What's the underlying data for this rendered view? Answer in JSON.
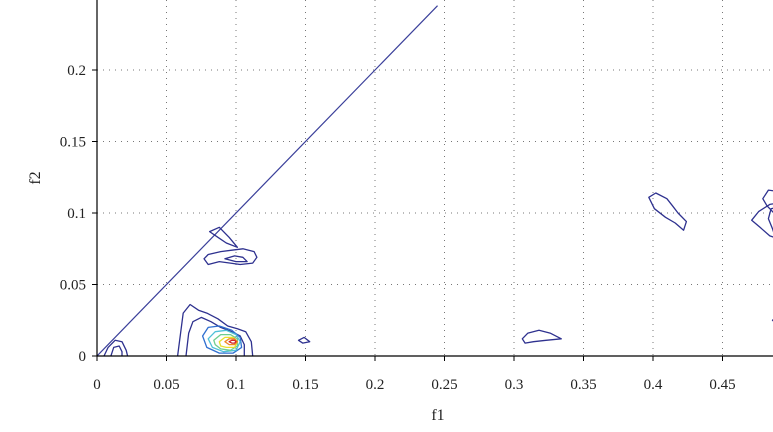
{
  "chart_data": {
    "type": "contour",
    "title": "",
    "xlabel": "f1",
    "ylabel": "f2",
    "xlim": [
      0,
      0.49
    ],
    "ylim": [
      0,
      0.24
    ],
    "x_ticks": [
      0,
      0.05,
      0.1,
      0.15,
      0.2,
      0.25,
      0.3,
      0.35,
      0.4,
      0.45
    ],
    "x_tick_labels": [
      "0",
      "0.05",
      "0.1",
      "0.15",
      "0.2",
      "0.25",
      "0.3",
      "0.35",
      "0.4",
      "0.45"
    ],
    "y_ticks": [
      0,
      0.05,
      0.1,
      0.15,
      0.2
    ],
    "y_tick_labels": [
      "0",
      "0.05",
      "0.1",
      "0.15",
      "0.2"
    ],
    "grid": true,
    "reference_line": {
      "from": [
        0,
        0
      ],
      "to": [
        0.245,
        0.245
      ],
      "color": "#3a3f9a"
    },
    "colors": {
      "dark_blue": "#2e318f",
      "blue": "#2f6fd0",
      "cyan": "#4fc0d8",
      "green": "#6fce8e",
      "yellow": "#e7e02f",
      "orange": "#f08a24",
      "red": "#d2232a"
    },
    "contours": [
      {
        "color": "#2e318f",
        "closed": false,
        "points": [
          [
            0.005,
            0
          ],
          [
            0.008,
            0.006
          ],
          [
            0.013,
            0.011
          ],
          [
            0.018,
            0.01
          ],
          [
            0.021,
            0.004
          ],
          [
            0.022,
            0
          ]
        ]
      },
      {
        "color": "#2e318f",
        "closed": false,
        "points": [
          [
            0.01,
            0
          ],
          [
            0.012,
            0.006
          ],
          [
            0.016,
            0.007
          ],
          [
            0.018,
            0.003
          ],
          [
            0.018,
            0
          ]
        ]
      },
      {
        "color": "#2e318f",
        "closed": false,
        "points": [
          [
            0.058,
            0
          ],
          [
            0.06,
            0.015
          ],
          [
            0.062,
            0.03
          ],
          [
            0.067,
            0.036
          ],
          [
            0.073,
            0.032
          ],
          [
            0.079,
            0.03
          ],
          [
            0.087,
            0.026
          ],
          [
            0.094,
            0.021
          ],
          [
            0.101,
            0.019
          ],
          [
            0.107,
            0.017
          ],
          [
            0.111,
            0.01
          ],
          [
            0.112,
            0
          ]
        ]
      },
      {
        "color": "#2e318f",
        "closed": false,
        "points": [
          [
            0.064,
            0
          ],
          [
            0.066,
            0.016
          ],
          [
            0.069,
            0.024
          ],
          [
            0.075,
            0.027
          ],
          [
            0.082,
            0.024
          ],
          [
            0.089,
            0.02
          ],
          [
            0.097,
            0.017
          ],
          [
            0.103,
            0.014
          ],
          [
            0.106,
            0.008
          ],
          [
            0.106,
            0
          ]
        ]
      },
      {
        "color": "#2f6fd0",
        "closed": true,
        "points": [
          [
            0.076,
            0.014
          ],
          [
            0.08,
            0.02
          ],
          [
            0.088,
            0.021
          ],
          [
            0.097,
            0.018
          ],
          [
            0.103,
            0.013
          ],
          [
            0.104,
            0.006
          ],
          [
            0.098,
            0.002
          ],
          [
            0.088,
            0.002
          ],
          [
            0.079,
            0.006
          ]
        ]
      },
      {
        "color": "#4fc0d8",
        "closed": true,
        "points": [
          [
            0.08,
            0.012
          ],
          [
            0.085,
            0.017
          ],
          [
            0.093,
            0.018
          ],
          [
            0.1,
            0.015
          ],
          [
            0.103,
            0.01
          ],
          [
            0.1,
            0.004
          ],
          [
            0.091,
            0.003
          ],
          [
            0.083,
            0.006
          ]
        ]
      },
      {
        "color": "#6fce8e",
        "closed": true,
        "points": [
          [
            0.084,
            0.011
          ],
          [
            0.089,
            0.015
          ],
          [
            0.096,
            0.015
          ],
          [
            0.101,
            0.012
          ],
          [
            0.101,
            0.007
          ],
          [
            0.096,
            0.004
          ],
          [
            0.089,
            0.005
          ],
          [
            0.085,
            0.008
          ]
        ]
      },
      {
        "color": "#e7e02f",
        "closed": true,
        "points": [
          [
            0.088,
            0.01
          ],
          [
            0.092,
            0.013
          ],
          [
            0.098,
            0.013
          ],
          [
            0.101,
            0.01
          ],
          [
            0.099,
            0.006
          ],
          [
            0.093,
            0.006
          ],
          [
            0.089,
            0.007
          ]
        ]
      },
      {
        "color": "#f08a24",
        "closed": true,
        "points": [
          [
            0.092,
            0.01
          ],
          [
            0.095,
            0.012
          ],
          [
            0.099,
            0.012
          ],
          [
            0.101,
            0.01
          ],
          [
            0.099,
            0.008
          ],
          [
            0.095,
            0.008
          ]
        ]
      },
      {
        "color": "#d2232a",
        "closed": true,
        "points": [
          [
            0.095,
            0.01
          ],
          [
            0.097,
            0.011
          ],
          [
            0.099,
            0.011
          ],
          [
            0.1,
            0.01
          ],
          [
            0.099,
            0.009
          ],
          [
            0.097,
            0.009
          ]
        ]
      },
      {
        "color": "#2e318f",
        "closed": true,
        "points": [
          [
            0.081,
            0.087
          ],
          [
            0.088,
            0.09
          ],
          [
            0.095,
            0.083
          ],
          [
            0.101,
            0.076
          ],
          [
            0.093,
            0.079
          ],
          [
            0.087,
            0.083
          ]
        ]
      },
      {
        "color": "#2e318f",
        "closed": true,
        "points": [
          [
            0.077,
            0.068
          ],
          [
            0.08,
            0.071
          ],
          [
            0.089,
            0.073
          ],
          [
            0.097,
            0.074
          ],
          [
            0.105,
            0.075
          ],
          [
            0.113,
            0.073
          ],
          [
            0.115,
            0.069
          ],
          [
            0.112,
            0.065
          ],
          [
            0.103,
            0.064
          ],
          [
            0.096,
            0.065
          ],
          [
            0.088,
            0.066
          ],
          [
            0.08,
            0.064
          ]
        ]
      },
      {
        "color": "#2e318f",
        "closed": true,
        "points": [
          [
            0.092,
            0.068
          ],
          [
            0.099,
            0.07
          ],
          [
            0.105,
            0.069
          ],
          [
            0.108,
            0.066
          ],
          [
            0.1,
            0.066
          ]
        ]
      },
      {
        "color": "#2e318f",
        "closed": true,
        "points": [
          [
            0.145,
            0.011
          ],
          [
            0.149,
            0.013
          ],
          [
            0.153,
            0.01
          ],
          [
            0.148,
            0.009
          ]
        ]
      },
      {
        "color": "#2e318f",
        "closed": true,
        "points": [
          [
            0.306,
            0.012
          ],
          [
            0.31,
            0.016
          ],
          [
            0.318,
            0.018
          ],
          [
            0.326,
            0.016
          ],
          [
            0.334,
            0.012
          ],
          [
            0.323,
            0.011
          ],
          [
            0.314,
            0.01
          ],
          [
            0.308,
            0.009
          ]
        ]
      },
      {
        "color": "#2e318f",
        "closed": true,
        "points": [
          [
            0.397,
            0.111
          ],
          [
            0.402,
            0.114
          ],
          [
            0.41,
            0.11
          ],
          [
            0.414,
            0.105
          ],
          [
            0.418,
            0.1
          ],
          [
            0.424,
            0.094
          ],
          [
            0.422,
            0.088
          ],
          [
            0.416,
            0.093
          ],
          [
            0.409,
            0.097
          ],
          [
            0.401,
            0.103
          ]
        ]
      },
      {
        "color": "#2e318f",
        "closed": false,
        "points": [
          [
            0.49,
            0.115
          ],
          [
            0.483,
            0.116
          ],
          [
            0.479,
            0.11
          ],
          [
            0.482,
            0.105
          ],
          [
            0.487,
            0.1
          ],
          [
            0.49,
            0.098
          ]
        ]
      },
      {
        "color": "#2e318f",
        "closed": false,
        "points": [
          [
            0.49,
            0.104
          ],
          [
            0.485,
            0.103
          ],
          [
            0.483,
            0.096
          ],
          [
            0.486,
            0.089
          ],
          [
            0.489,
            0.08
          ],
          [
            0.49,
            0.079
          ]
        ]
      },
      {
        "color": "#2e318f",
        "closed": false,
        "points": [
          [
            0.49,
            0.107
          ],
          [
            0.484,
            0.106
          ],
          [
            0.476,
            0.101
          ],
          [
            0.471,
            0.095
          ],
          [
            0.477,
            0.09
          ],
          [
            0.484,
            0.084
          ],
          [
            0.49,
            0.082
          ]
        ]
      },
      {
        "color": "#2e318f",
        "closed": false,
        "points": [
          [
            0.49,
            0.029
          ],
          [
            0.486,
            0.025
          ],
          [
            0.49,
            0.022
          ]
        ]
      }
    ]
  }
}
